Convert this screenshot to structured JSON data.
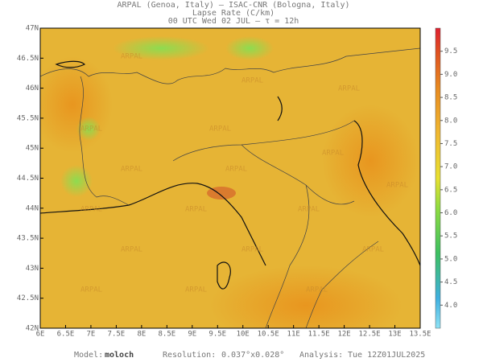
{
  "header": {
    "line1": "ARPAL (Genoa, Italy)  –  ISAC-CNR (Bologna, Italy)",
    "line2": "Lapse Rate (C/km)",
    "line3": "00 UTC Wed 02 JUL  –  τ = 12h"
  },
  "map": {
    "lon_range": [
      6,
      13.5
    ],
    "lat_range": [
      42,
      47
    ],
    "lon_ticks": [
      {
        "value": 6,
        "label": "6E"
      },
      {
        "value": 6.5,
        "label": "6.5E"
      },
      {
        "value": 7,
        "label": "7E"
      },
      {
        "value": 7.5,
        "label": "7.5E"
      },
      {
        "value": 8,
        "label": "8E"
      },
      {
        "value": 8.5,
        "label": "8.5E"
      },
      {
        "value": 9,
        "label": "9E"
      },
      {
        "value": 9.5,
        "label": "9.5E"
      },
      {
        "value": 10,
        "label": "10E"
      },
      {
        "value": 10.5,
        "label": "10.5E"
      },
      {
        "value": 11,
        "label": "11E"
      },
      {
        "value": 11.5,
        "label": "11.5E"
      },
      {
        "value": 12,
        "label": "12E"
      },
      {
        "value": 12.5,
        "label": "12.5E"
      },
      {
        "value": 13,
        "label": "13E"
      },
      {
        "value": 13.5,
        "label": "13.5E"
      }
    ],
    "lat_ticks": [
      {
        "value": 42,
        "label": "42N"
      },
      {
        "value": 42.5,
        "label": "42.5N"
      },
      {
        "value": 43,
        "label": "43N"
      },
      {
        "value": 43.5,
        "label": "43.5N"
      },
      {
        "value": 44,
        "label": "44N"
      },
      {
        "value": 44.5,
        "label": "44.5N"
      },
      {
        "value": 45,
        "label": "45N"
      },
      {
        "value": 45.5,
        "label": "45.5N"
      },
      {
        "value": 46,
        "label": "46N"
      },
      {
        "value": 46.5,
        "label": "46.5N"
      },
      {
        "value": 47,
        "label": "47N"
      }
    ],
    "watermark": "ARPAL"
  },
  "colorbar": {
    "range": [
      3.5,
      10
    ],
    "ticks": [
      {
        "value": 4,
        "label": "4.0"
      },
      4.5,
      {
        "value": 5,
        "label": "5.0"
      },
      5.5,
      {
        "value": 6,
        "label": "6.0"
      },
      6.5,
      {
        "value": 7,
        "label": "7.0"
      },
      7.5,
      {
        "value": 8,
        "label": "8.0"
      },
      8.5,
      {
        "value": 9,
        "label": "9.0"
      },
      9.5
    ]
  },
  "footer": {
    "model_label": "Model:",
    "model": "moloch",
    "resolution_label": "Resolution:",
    "resolution": "0.037°x0.028°",
    "analysis_label": "Analysis:",
    "analysis": "Tue 12Z01JUL2025"
  }
}
